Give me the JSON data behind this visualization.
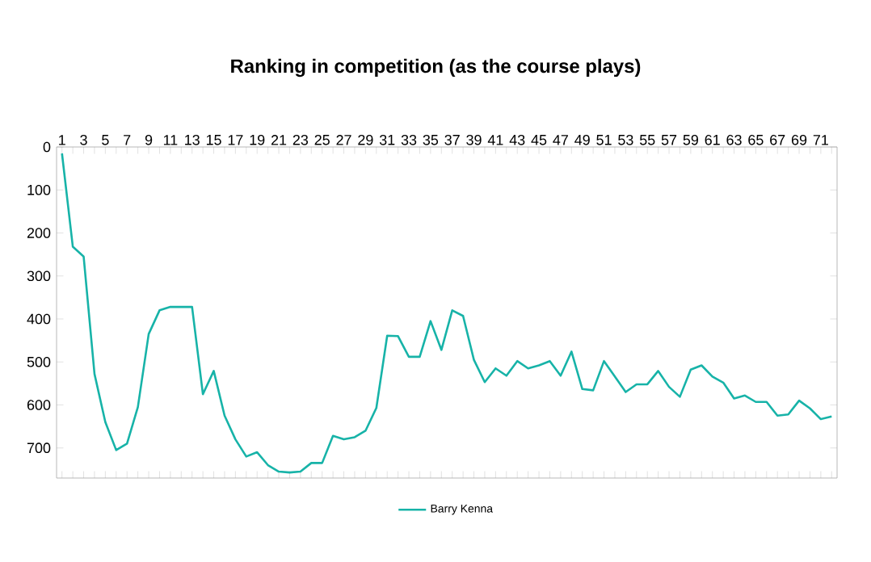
{
  "chart_data": {
    "type": "line",
    "title": "Ranking in competition (as the course plays)",
    "categories": [
      "1",
      null,
      "3",
      null,
      "5",
      null,
      "7",
      null,
      "9",
      null,
      "11",
      null,
      "13",
      null,
      "15",
      null,
      "17",
      null,
      "19",
      null,
      "21",
      null,
      "23",
      null,
      "25",
      null,
      "27",
      null,
      "29",
      null,
      "31",
      null,
      "33",
      null,
      "35",
      null,
      "37",
      null,
      "39",
      null,
      "41",
      null,
      "43",
      null,
      "45",
      null,
      "47",
      null,
      "49",
      null,
      "51",
      null,
      "53",
      null,
      "55",
      null,
      "57",
      null,
      "59",
      null,
      "61",
      null,
      "63",
      null,
      "65",
      null,
      "67",
      null,
      "69",
      null,
      "71",
      null
    ],
    "series": [
      {
        "name": "Barry Kenna",
        "color": "#17b3a8",
        "values": [
          15,
          232,
          255,
          528,
          640,
          705,
          690,
          605,
          435,
          380,
          372,
          372,
          372,
          575,
          521,
          625,
          680,
          720,
          710,
          740,
          755,
          757,
          755,
          735,
          735,
          672,
          680,
          675,
          660,
          607,
          439,
          440,
          488,
          488,
          405,
          472,
          380,
          393,
          495,
          547,
          515,
          532,
          498,
          515,
          508,
          498,
          532,
          476,
          563,
          566,
          498,
          534,
          570,
          552,
          552,
          521,
          558,
          581,
          518,
          508,
          534,
          548,
          585,
          578,
          593,
          593,
          625,
          622,
          590,
          608,
          633,
          627
        ]
      }
    ],
    "ylim": [
      770,
      0
    ],
    "yticks": [
      0,
      100,
      200,
      300,
      400,
      500,
      600,
      700
    ],
    "legend": "bottom",
    "grid": false,
    "marker": "none",
    "line_style": "solid"
  }
}
